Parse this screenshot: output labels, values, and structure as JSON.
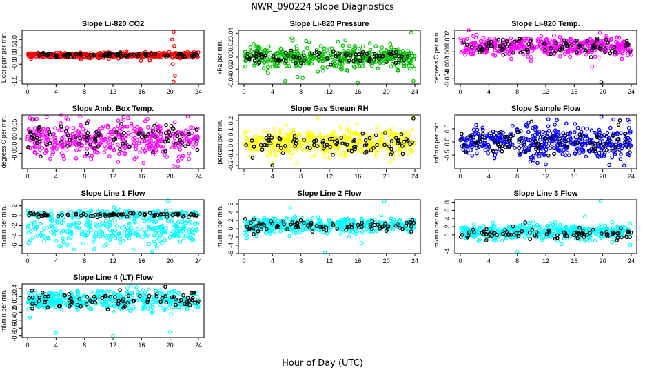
{
  "figure": {
    "title": "NWR_090224  Slope Diagnostics",
    "xlabel": "Hour of Day (UTC)"
  },
  "chart_data": [
    {
      "type": "scatter",
      "title": "Slope Li-820 CO2",
      "ylabel": "Licor ppm per min.",
      "xlim": [
        0,
        24
      ],
      "ylim": [
        -1.7,
        1.55
      ],
      "xticks": [
        0,
        4,
        8,
        12,
        16,
        20,
        24
      ],
      "yticks": [
        -1.5,
        -0.5,
        0.0,
        0.5,
        1.0
      ],
      "ytick_labels": [
        "-1.5",
        "-0.5",
        "0.0",
        "0.5",
        "1.0"
      ],
      "series": [
        {
          "color": "#ff0000",
          "count": 420,
          "center": 0.05,
          "spread": 0.08,
          "outliers": [
            [
              20.5,
              1.45
            ],
            [
              20.3,
              1.0
            ],
            [
              20.6,
              0.6
            ],
            [
              20.4,
              -0.5
            ],
            [
              20.7,
              -1.2
            ],
            [
              20.5,
              -1.55
            ]
          ]
        },
        {
          "color": "#000000",
          "count": 90,
          "center": 0.05,
          "spread": 0.07,
          "outliers": []
        }
      ]
    },
    {
      "type": "scatter",
      "title": "Slope Li-820 Pressure",
      "ylabel": "kPa per min.",
      "xlim": [
        0,
        24
      ],
      "ylim": [
        -0.045,
        0.045
      ],
      "xticks": [
        0,
        4,
        8,
        12,
        16,
        20,
        24
      ],
      "yticks": [
        -0.04,
        -0.02,
        0.0,
        0.02,
        0.04
      ],
      "ytick_labels": [
        "-0.04",
        "-0.02",
        "0.00",
        "0.02",
        "0.04"
      ],
      "series": [
        {
          "color": "#00c000",
          "count": 420,
          "center": 0.0,
          "spread": 0.009,
          "outliers": [
            [
              5.8,
              -0.04
            ],
            [
              23.5,
              0.041
            ],
            [
              23.8,
              -0.04
            ],
            [
              16.0,
              -0.043
            ],
            [
              6.7,
              0.032
            ],
            [
              7.5,
              -0.033
            ]
          ]
        },
        {
          "color": "#000000",
          "count": 90,
          "center": 0.0,
          "spread": 0.006,
          "outliers": []
        }
      ]
    },
    {
      "type": "scatter",
      "title": "Slope Li-820 Temp.",
      "ylabel": "degrees C per min.",
      "xlim": [
        0,
        24
      ],
      "ylim": [
        -0.0048,
        0.0032
      ],
      "xticks": [
        0,
        4,
        8,
        12,
        16,
        20,
        24
      ],
      "yticks": [
        -0.004,
        -0.002,
        0.0,
        0.002
      ],
      "ytick_labels": [
        "-0.004",
        "-0.002",
        "0.000",
        "0.002"
      ],
      "series": [
        {
          "color": "#ff00ff",
          "count": 420,
          "center": 0.0008,
          "spread": 0.0007,
          "outliers": [
            [
              19.6,
              0.0028
            ],
            [
              18.5,
              -0.0022
            ],
            [
              9.0,
              0.002
            ]
          ]
        },
        {
          "color": "#000000",
          "count": 90,
          "center": 0.0008,
          "spread": 0.0006,
          "outliers": [
            [
              19.8,
              -0.0045
            ],
            [
              19.2,
              0.002
            ]
          ]
        }
      ]
    },
    {
      "type": "scatter",
      "title": "Slope Amb. Box Temp.",
      "ylabel": "degrees C per min.",
      "xlim": [
        0,
        24
      ],
      "ylim": [
        -0.105,
        0.085
      ],
      "xticks": [
        0,
        4,
        8,
        12,
        16,
        20,
        24
      ],
      "yticks": [
        -0.05,
        0.0,
        0.05
      ],
      "ytick_labels": [
        "-0.05",
        "0.00",
        "0.05"
      ],
      "series": [
        {
          "color": "#ff00ff",
          "count": 420,
          "center": 0.0,
          "spread": 0.03,
          "outliers": [
            [
              0.3,
              0.075
            ],
            [
              22.5,
              0.08
            ],
            [
              20.5,
              -0.095
            ],
            [
              13.5,
              0.078
            ]
          ]
        },
        {
          "color": "#000000",
          "count": 90,
          "center": 0.01,
          "spread": 0.025,
          "outliers": []
        }
      ]
    },
    {
      "type": "scatter",
      "title": "Slope Gas Stream RH",
      "ylabel": "percent per min.",
      "xlim": [
        0,
        24
      ],
      "ylim": [
        -0.23,
        0.25
      ],
      "xticks": [
        0,
        4,
        8,
        12,
        16,
        20,
        24
      ],
      "yticks": [
        -0.2,
        -0.1,
        0.0,
        0.1,
        0.2
      ],
      "ytick_labels": [
        "-0.2",
        "-0.1",
        "0.0",
        "0.1",
        "0.2"
      ],
      "series": [
        {
          "color": "#ffff00",
          "count": 420,
          "center": 0.0,
          "spread": 0.06,
          "outliers": [
            [
              23.8,
              0.23
            ],
            [
              4.0,
              -0.18
            ],
            [
              20.5,
              -0.17
            ]
          ]
        },
        {
          "color": "#000000",
          "count": 90,
          "center": 0.0,
          "spread": 0.05,
          "outliers": [
            [
              4.0,
              -0.2
            ],
            [
              23.8,
              0.22
            ]
          ]
        }
      ]
    },
    {
      "type": "scatter",
      "title": "Slope Sample Flow",
      "ylabel": "ml/min per min.",
      "xlim": [
        0,
        24
      ],
      "ylim": [
        -1.02,
        1.02
      ],
      "xticks": [
        0,
        4,
        8,
        12,
        16,
        20,
        24
      ],
      "yticks": [
        -0.5,
        0.0,
        0.5
      ],
      "ytick_labels": [
        "-0.5",
        "0.0",
        "0.5"
      ],
      "series": [
        {
          "color": "#0000ff",
          "count": 420,
          "center": 0.0,
          "spread": 0.3,
          "outliers": [
            [
              19.8,
              0.95
            ],
            [
              23.0,
              -0.9
            ],
            [
              12.0,
              -0.85
            ],
            [
              21.5,
              0.85
            ]
          ]
        },
        {
          "color": "#000000",
          "count": 90,
          "center": 0.0,
          "spread": 0.25,
          "outliers": []
        }
      ]
    },
    {
      "type": "scatter",
      "title": "Slope Line 1 Flow",
      "ylabel": "ml/min per min.",
      "xlim": [
        0,
        24
      ],
      "ylim": [
        -7.6,
        3.2
      ],
      "xticks": [
        0,
        4,
        8,
        12,
        16,
        20,
        24
      ],
      "yticks": [
        -6,
        -4,
        -2,
        0,
        2
      ],
      "ytick_labels": [
        "-6",
        "-4",
        "-2",
        "0",
        "2"
      ],
      "series": [
        {
          "color": "#00ffff",
          "count": 440,
          "center": -2.0,
          "spread": 2.2,
          "outliers": [
            [
              19.7,
              3.0
            ],
            [
              17.5,
              -7.2
            ]
          ]
        },
        {
          "color": "#000000",
          "count": 90,
          "center": 0.2,
          "spread": 0.2,
          "outliers": []
        }
      ]
    },
    {
      "type": "scatter",
      "title": "Slope Line 2 Flow",
      "ylabel": "ml/min per min.",
      "xlim": [
        0,
        24
      ],
      "ylim": [
        -6.0,
        7.0
      ],
      "xticks": [
        0,
        4,
        8,
        12,
        16,
        20,
        24
      ],
      "yticks": [
        -6,
        -4,
        -2,
        0,
        2,
        4,
        6
      ],
      "ytick_labels": [
        "-6",
        "-4",
        "-2",
        "0",
        "2",
        "4",
        "6"
      ],
      "series": [
        {
          "color": "#00ffff",
          "count": 420,
          "center": 0.8,
          "spread": 0.9,
          "outliers": [
            [
              6.5,
              5.0
            ],
            [
              19.7,
              6.7
            ],
            [
              16.5,
              -3.5
            ],
            [
              11.4,
              -5.8
            ]
          ]
        },
        {
          "color": "#000000",
          "count": 90,
          "center": 0.7,
          "spread": 0.8,
          "outliers": []
        }
      ]
    },
    {
      "type": "scatter",
      "title": "Slope Line 3 Flow",
      "ylabel": "ml/min per min.",
      "xlim": [
        0,
        24
      ],
      "ylim": [
        -4.6,
        8.6
      ],
      "xticks": [
        0,
        4,
        8,
        12,
        16,
        20,
        24
      ],
      "yticks": [
        -4,
        0,
        2,
        4,
        6,
        8
      ],
      "ytick_labels": [
        "-4",
        "0",
        "2",
        "4",
        "6",
        "8"
      ],
      "series": [
        {
          "color": "#00ffff",
          "count": 420,
          "center": 0.7,
          "spread": 0.9,
          "outliers": [
            [
              19.7,
              8.3
            ],
            [
              8.0,
              -4.2
            ],
            [
              17.5,
              4.5
            ]
          ]
        },
        {
          "color": "#000000",
          "count": 90,
          "center": 0.3,
          "spread": 0.8,
          "outliers": []
        }
      ]
    },
    {
      "type": "scatter",
      "title": "Slope Line 4 (LT) Flow",
      "ylabel": "ml/min per min.",
      "xlim": [
        0,
        24
      ],
      "ylim": [
        -0.84,
        0.52
      ],
      "xticks": [
        0,
        4,
        8,
        12,
        16,
        20,
        24
      ],
      "yticks": [
        -0.8,
        -0.6,
        -0.4,
        -0.2,
        0.0,
        0.2,
        0.4
      ],
      "ytick_labels": [
        "-0.8",
        "-0.6",
        "-0.4",
        "-0.2",
        "0.0",
        "0.2",
        "0.4"
      ],
      "series": [
        {
          "color": "#00ffff",
          "count": 420,
          "center": 0.1,
          "spread": 0.12,
          "outliers": [
            [
              14.5,
              0.48
            ],
            [
              12.0,
              -0.8
            ],
            [
              4.0,
              -0.72
            ],
            [
              20.0,
              -0.7
            ]
          ]
        },
        {
          "color": "#000000",
          "count": 90,
          "center": 0.12,
          "spread": 0.1,
          "outliers": []
        }
      ]
    }
  ]
}
